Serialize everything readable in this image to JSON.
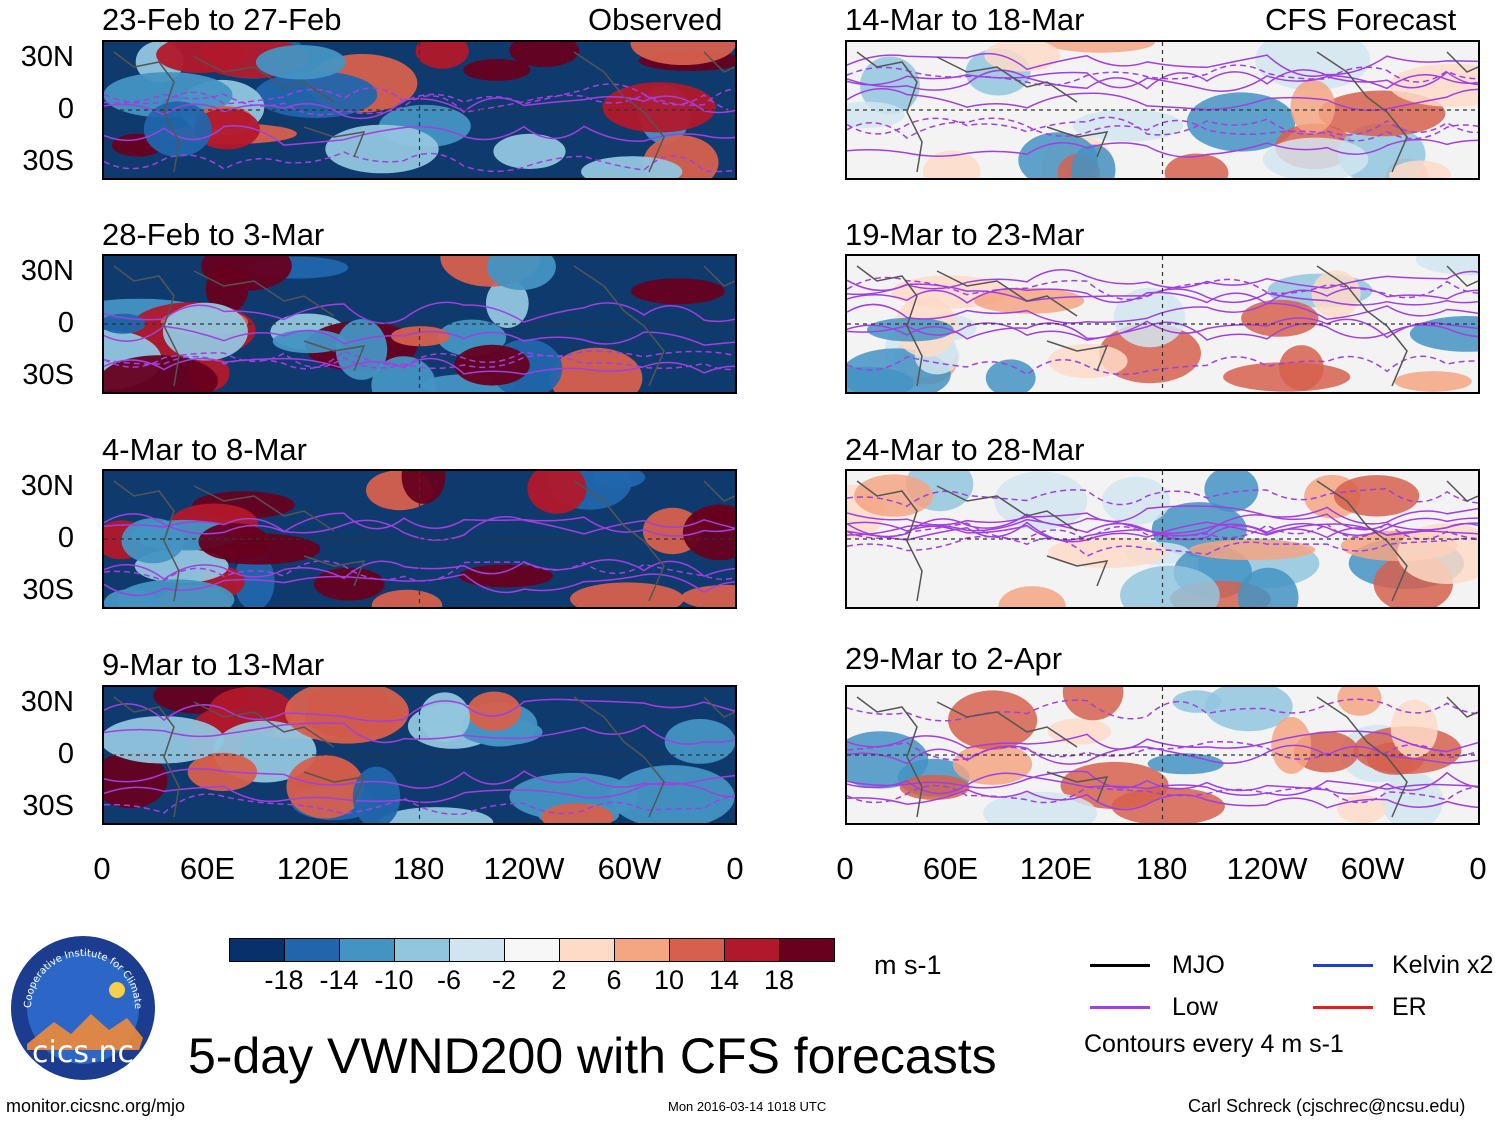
{
  "chart_data": {
    "type": "heatmap",
    "title": "5-day VWND200 with CFS forecasts",
    "variable": "VWND200",
    "units": "m s-1",
    "panels": [
      {
        "column": "left",
        "row": 0,
        "title": "23-Feb to 27-Feb",
        "label": "Observed"
      },
      {
        "column": "left",
        "row": 1,
        "title": "28-Feb to 3-Mar",
        "label": ""
      },
      {
        "column": "left",
        "row": 2,
        "title": "4-Mar to 8-Mar",
        "label": ""
      },
      {
        "column": "left",
        "row": 3,
        "title": "9-Mar to 13-Mar",
        "label": ""
      },
      {
        "column": "right",
        "row": 0,
        "title": "14-Mar to 18-Mar",
        "label": "CFS Forecast"
      },
      {
        "column": "right",
        "row": 1,
        "title": "19-Mar to 23-Mar",
        "label": ""
      },
      {
        "column": "right",
        "row": 2,
        "title": "24-Mar to 28-Mar",
        "label": ""
      },
      {
        "column": "right",
        "row": 3,
        "title": "29-Mar to 2-Apr",
        "label": ""
      }
    ],
    "y_ticks": [
      "30N",
      "0",
      "30S"
    ],
    "x_ticks": [
      "0",
      "60E",
      "120E",
      "180",
      "120W",
      "60W",
      "0"
    ],
    "colorbar": {
      "ticks": [
        "-18",
        "-14",
        "-10",
        "-6",
        "-2",
        "2",
        "6",
        "10",
        "14",
        "18"
      ],
      "colors": [
        "#08306b",
        "#2166ac",
        "#4393c3",
        "#92c5de",
        "#d1e5f0",
        "#f7f7f7",
        "#fddbc7",
        "#f4a582",
        "#d6604d",
        "#b2182b",
        "#67001f"
      ],
      "units": "m s-1"
    },
    "legend": [
      {
        "label": "MJO",
        "color": "#000000"
      },
      {
        "label": "Kelvin x2",
        "color": "#1f3fd0"
      },
      {
        "label": "Low",
        "color": "#a23fe0"
      },
      {
        "label": "ER",
        "color": "#e02020"
      }
    ],
    "contour_note": "Contours every 4 m s-1"
  },
  "logo": {
    "text": "cics.nc",
    "ring_text": "Cooperative Institute for Climate and Satellites"
  },
  "footer": {
    "url": "monitor.cicsnc.org/mjo",
    "timestamp": "Mon 2016-03-14 1018 UTC",
    "author": "Carl Schreck (cjschrec@ncsu.edu)"
  }
}
